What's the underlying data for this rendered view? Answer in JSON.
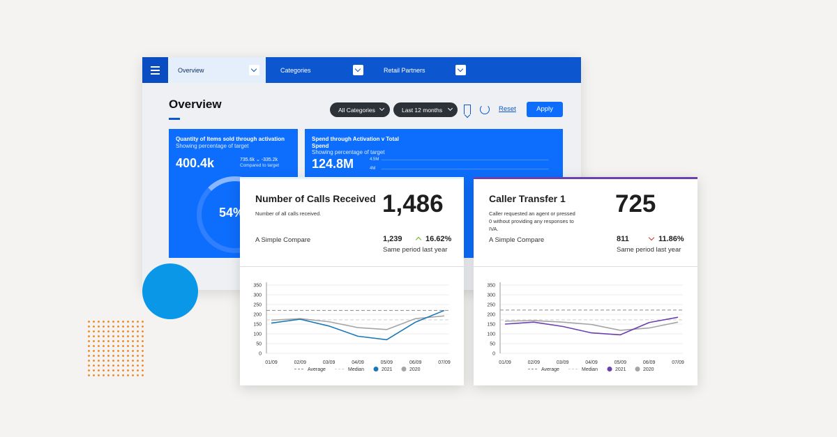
{
  "nav": {
    "tabs": [
      {
        "label": "Overview"
      },
      {
        "label": "Categories"
      },
      {
        "label": "Retail Partners"
      }
    ]
  },
  "header": {
    "title": "Overview",
    "filter_category": "All Categories",
    "filter_period": "Last 12 months",
    "reset_label": "Reset",
    "apply_label": "Apply"
  },
  "kpi1": {
    "title": "Quantity of Items sold through activation",
    "subtitle": "Showing percentage of target",
    "value": "400.4k",
    "detail_values": "735.6k ⌄ -335.2k",
    "detail_caption": "Compared to target",
    "ring_value": "54%"
  },
  "kpi2": {
    "title": "Spend through Activation v Total Spend",
    "subtitle": "Showing percentage of target",
    "value": "124.8M",
    "yticks": [
      "4.5M",
      "4M"
    ]
  },
  "card1": {
    "title": "Number of Calls Received",
    "description": "Number of all calls received.",
    "big_value": "1,486",
    "compare_label": "A Simple Compare",
    "compare_value": "1,239",
    "compare_pct": "16.62%",
    "compare_sub": "Same period last year"
  },
  "card2": {
    "title": "Caller Transfer 1",
    "description": "Caller requested an agent or pressed 0 without providing any responses to IVA.",
    "big_value": "725",
    "compare_label": "A Simple Compare",
    "compare_value": "811",
    "compare_pct": "11.86%",
    "compare_sub": "Same period last year"
  },
  "colors": {
    "brand": "#0c56d0",
    "kpi": "#0d6efd",
    "series1_card1": "#1a78b8",
    "series1_card2": "#6a3fb0",
    "series2": "#a5a5a5",
    "up": "#6ab023",
    "down": "#d9302c"
  },
  "chart_data": [
    {
      "type": "line",
      "title": "Number of Calls Received",
      "x": [
        "01/09",
        "02/09",
        "03/09",
        "04/09",
        "05/09",
        "06/09",
        "07/09"
      ],
      "ylim": [
        0,
        350
      ],
      "yticks": [
        0,
        50,
        100,
        150,
        200,
        250,
        300,
        350
      ],
      "series": [
        {
          "name": "2021",
          "values": [
            155,
            175,
            140,
            88,
            70,
            160,
            220
          ]
        },
        {
          "name": "2020",
          "values": [
            170,
            178,
            162,
            132,
            122,
            178,
            192
          ]
        }
      ],
      "reference_lines": [
        {
          "name": "Average",
          "value": 220
        },
        {
          "name": "Median",
          "value": 172
        }
      ],
      "legend": [
        "Average",
        "Median",
        "2021",
        "2020"
      ]
    },
    {
      "type": "line",
      "title": "Caller Transfer 1",
      "x": [
        "01/09",
        "02/09",
        "03/09",
        "04/09",
        "05/09",
        "06/09",
        "07/09"
      ],
      "ylim": [
        0,
        350
      ],
      "yticks": [
        0,
        50,
        100,
        150,
        200,
        250,
        300,
        350
      ],
      "series": [
        {
          "name": "2021",
          "values": [
            150,
            160,
            138,
            105,
            95,
            158,
            185
          ]
        },
        {
          "name": "2020",
          "values": [
            165,
            168,
            160,
            148,
            118,
            130,
            160
          ]
        }
      ],
      "reference_lines": [
        {
          "name": "Average",
          "value": 222
        },
        {
          "name": "Median",
          "value": 172
        }
      ],
      "legend": [
        "Average",
        "Median",
        "2021",
        "2020"
      ]
    }
  ]
}
